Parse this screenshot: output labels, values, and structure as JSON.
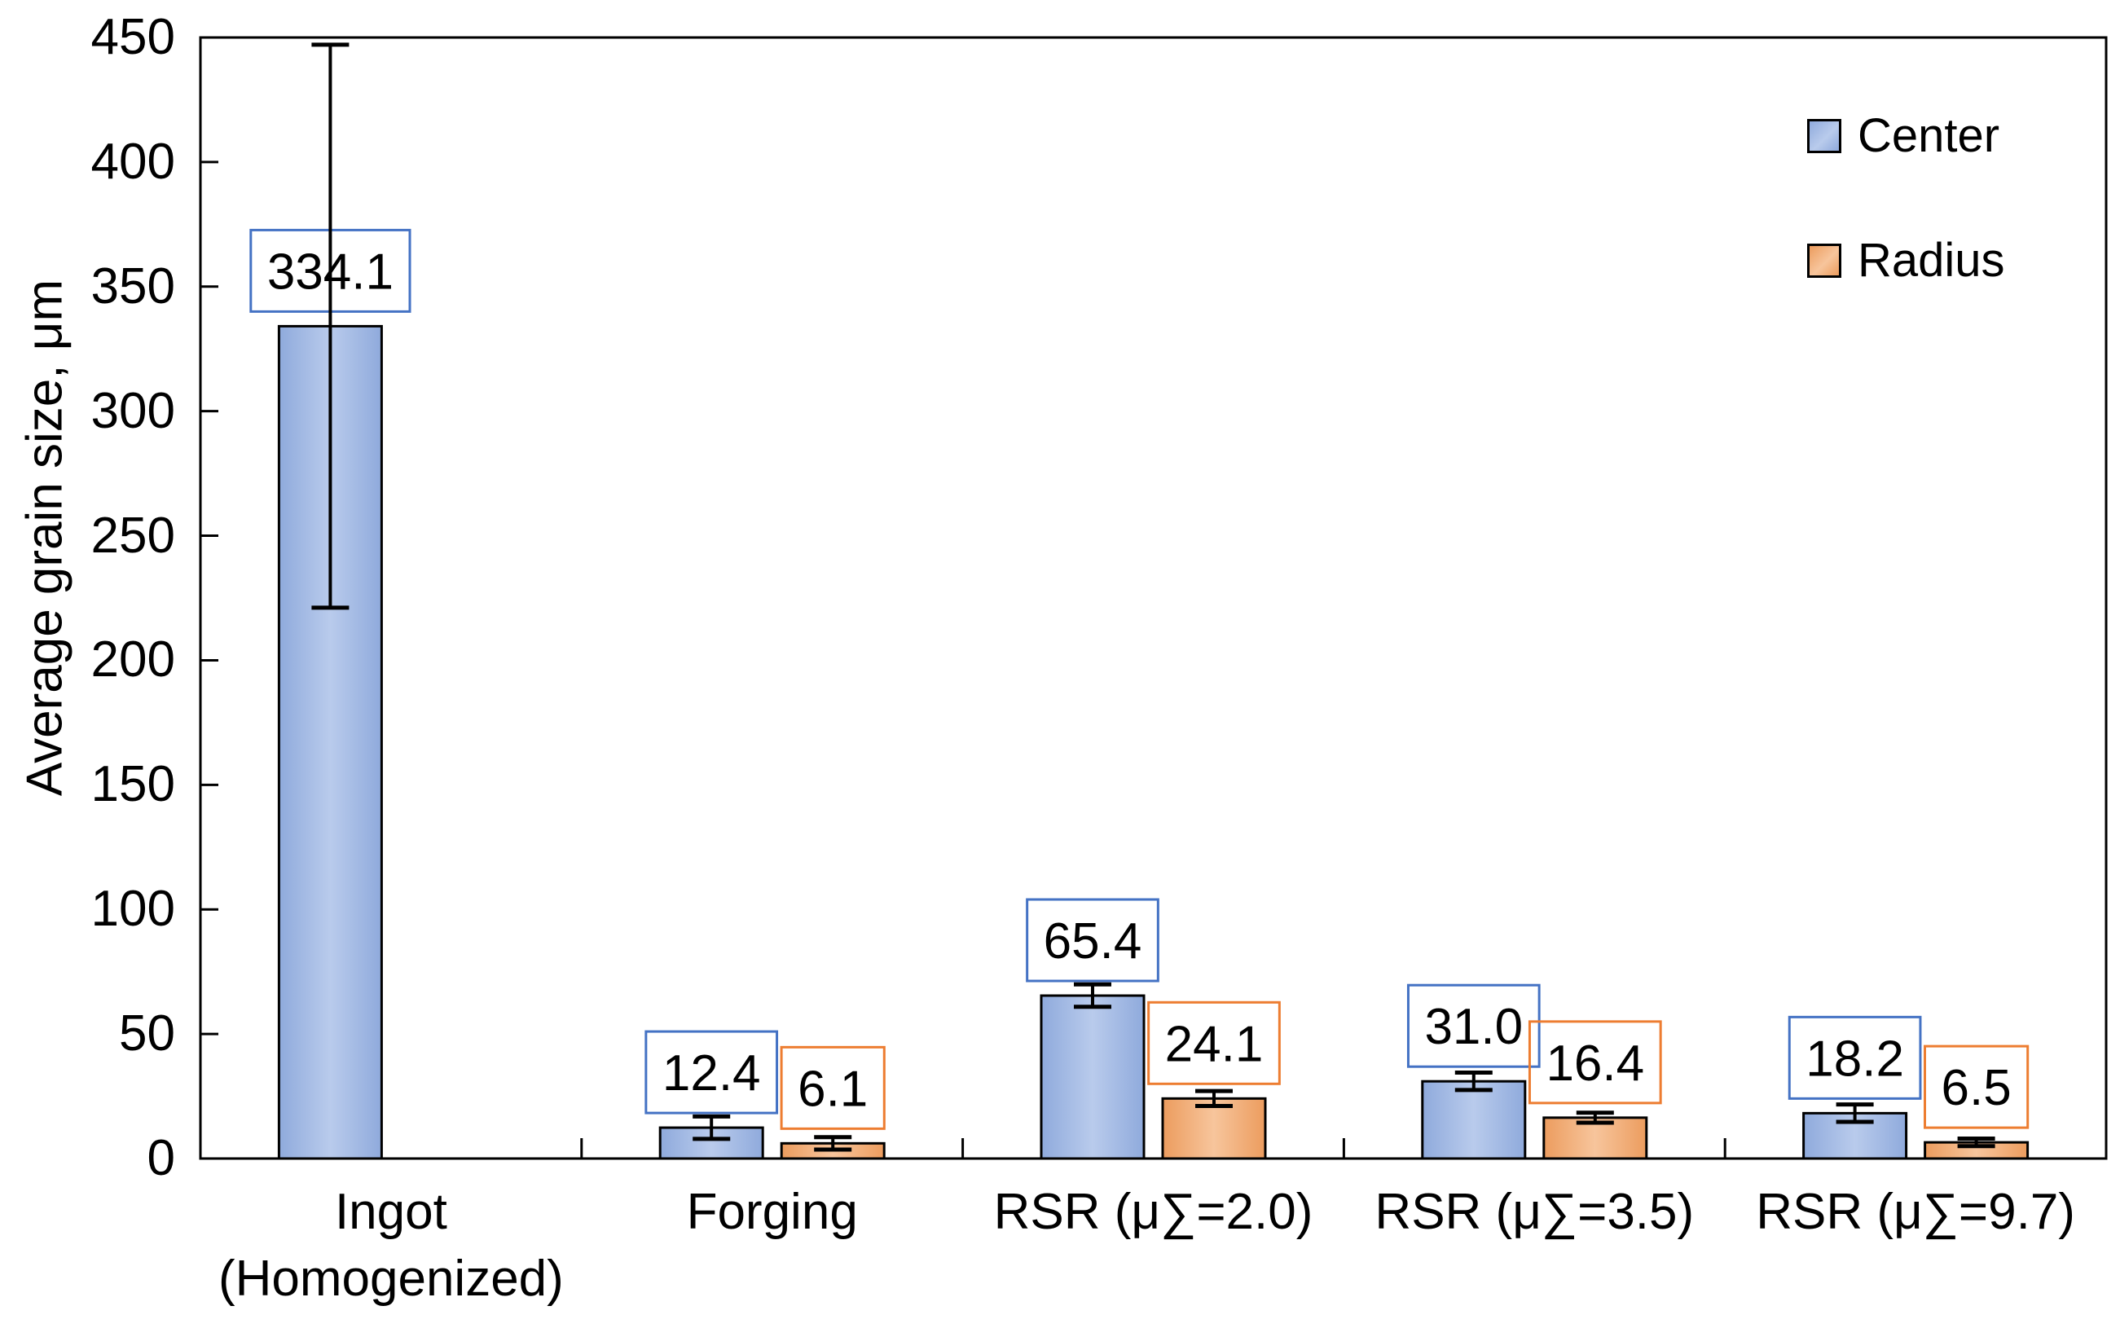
{
  "chart_data": {
    "type": "bar",
    "title": "",
    "ylabel": "Average grain size, μm",
    "xlabel": "",
    "ylim": [
      0,
      450
    ],
    "yticks": [
      0,
      50,
      100,
      150,
      200,
      250,
      300,
      350,
      400,
      450
    ],
    "grid": false,
    "legend_position": "top-right",
    "categories": [
      "Ingot\n(Homogenized)",
      "Forging",
      "RSR (μ∑=2.0)",
      "RSR (μ∑=3.5)",
      "RSR (μ∑=9.7)"
    ],
    "series": [
      {
        "name": "Center",
        "border_color": "#4472C4",
        "fill_light": "#B9CBEC",
        "fill_dark": "#8FAADC",
        "values": [
          334.1,
          12.4,
          65.4,
          31.0,
          18.2
        ],
        "labels": [
          "334.1",
          "12.4",
          "65.4",
          "31.0",
          "18.2"
        ],
        "errors": [
          113,
          4.5,
          4.5,
          3.5,
          3.5
        ]
      },
      {
        "name": "Radius",
        "border_color": "#ED7D31",
        "fill_light": "#F7C59C",
        "fill_dark": "#EC9C5E",
        "values": [
          null,
          6.1,
          24.1,
          16.4,
          6.5
        ],
        "labels": [
          null,
          "6.1",
          "24.1",
          "16.4",
          "6.5"
        ],
        "errors": [
          null,
          2.5,
          3,
          2,
          1.5
        ]
      }
    ]
  }
}
